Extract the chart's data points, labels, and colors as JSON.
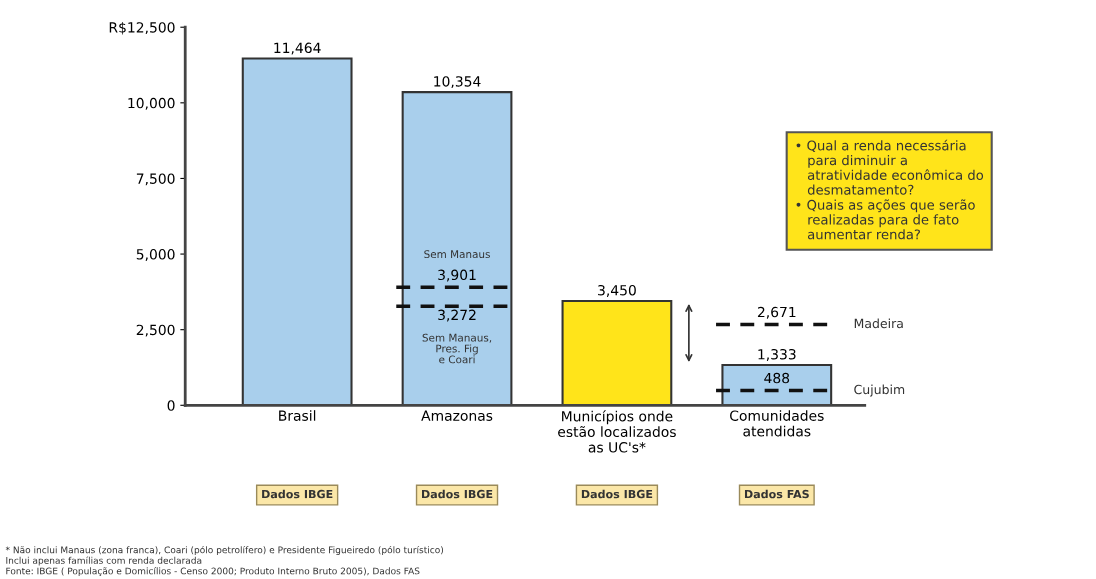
{
  "chart_data": {
    "type": "bar",
    "categories": [
      "Brasil",
      "Amazonas",
      "Municípios onde\nestão localizados\nas UC's*",
      "Comunidades\natendidas"
    ],
    "values": [
      11464,
      10354,
      3450,
      1333
    ],
    "colors": [
      "#a9cfec",
      "#a9cfec",
      "#ffe41a",
      "#a9cfec"
    ],
    "value_labels": [
      "11,464",
      "10,354",
      "3,450",
      "1,333"
    ],
    "ylim": [
      0,
      12500
    ],
    "yticks": [
      0,
      {
        "value": 2500,
        "label": "2,500"
      },
      {
        "value": 5000,
        "label": "5,000"
      },
      {
        "value": 7500,
        "label": "7,500"
      },
      {
        "value": 10000,
        "label": "10,000"
      },
      {
        "value": 12500,
        "label": "R$12,500"
      }
    ],
    "grid": false,
    "ref_lines": [
      {
        "axis": "y",
        "value": 3901,
        "label": "Sem Manaus",
        "color": "#111111",
        "line_style": "dashed"
      },
      {
        "axis": "y",
        "value": 3272,
        "label": "Sem Manaus,\nPres. Fig\ne Coari",
        "color": "#111111",
        "line_style": "dashed"
      },
      {
        "axis": "y",
        "value": 2671,
        "label": "Madeira",
        "color": "#111111",
        "line_style": "dashed"
      },
      {
        "axis": "y",
        "value": 488,
        "label": "Cujubim",
        "color": "#111111",
        "line_style": "dashed"
      }
    ],
    "annotations": [
      "• Qual a renda necessária\n   para diminuir a\n   atratividade econômica do\n   desmatamento?\n• Quais as ações que serão\n   realizadas para de fato\n   aumentar renda?",
      {
        "text": "3,901",
        "y": 3901
      },
      {
        "text": "3,272",
        "y": 3272
      },
      {
        "text": "2,671",
        "y": 2671
      },
      {
        "text": "488",
        "y": 488
      },
      "Dados IBGE",
      "Dados IBGE",
      "Dados IBGE",
      "Dados FAS",
      "* Não inclui Manaus (zona franca), Coari (pólo petrolífero) e Presidente Figueiredo (pólo turístico)\nInclui apenas famílias com renda declarada\nFonte: IBGE ( População e Domicílios - Censo 2000; Produto Interno Bruto 2005), Dados FAS"
    ]
  }
}
